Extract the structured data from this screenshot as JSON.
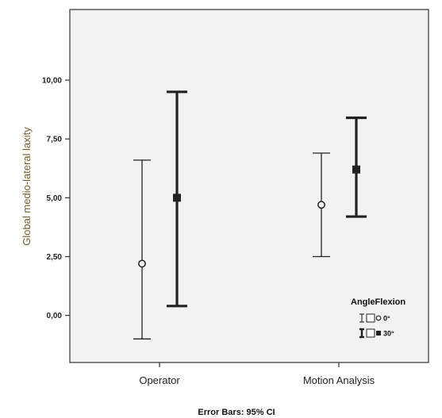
{
  "chart_data": {
    "type": "errorbar",
    "ylabel": "Global medio-lateral laxity",
    "footer": "Error Bars: 95% CI",
    "categories": [
      "Operator",
      "Motion Analysis"
    ],
    "ylim": [
      -2.0,
      13.0
    ],
    "yticks": [
      0,
      2.5,
      5,
      7.5,
      10
    ],
    "ytick_labels": [
      "0,00",
      "2,50",
      "5,00",
      "7,50",
      "10,00"
    ],
    "legend": {
      "title": "AngleFlexion",
      "position": "bottom-right",
      "entries": [
        "0°",
        "30°"
      ]
    },
    "series": [
      {
        "name": "0°",
        "marker": "circle",
        "points": [
          {
            "category": "Operator",
            "mean": 2.2,
            "lower": -1.0,
            "upper": 6.6
          },
          {
            "category": "Motion Analysis",
            "mean": 4.7,
            "lower": 2.5,
            "upper": 6.9
          }
        ]
      },
      {
        "name": "30°",
        "marker": "square",
        "points": [
          {
            "category": "Operator",
            "mean": 5.0,
            "lower": 0.4,
            "upper": 9.5
          },
          {
            "category": "Motion Analysis",
            "mean": 6.2,
            "lower": 4.2,
            "upper": 8.4
          }
        ]
      }
    ]
  }
}
